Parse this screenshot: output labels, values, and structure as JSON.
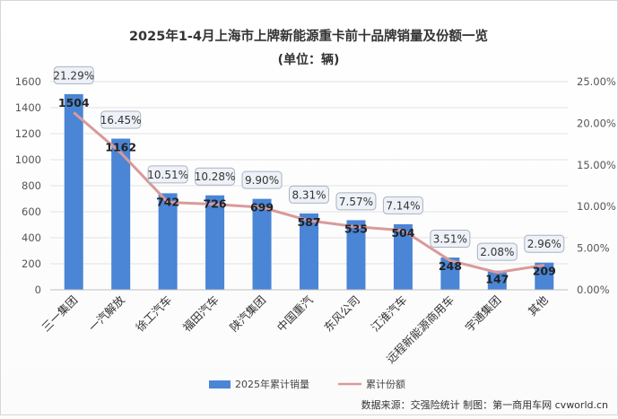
{
  "chart_data": {
    "type": "bar+line",
    "title": "2025年1-4月上海市上牌新能源重卡前十品牌销量及份额一览",
    "subtitle": "(单位：辆)",
    "categories": [
      "三一集团",
      "一汽解放",
      "徐工汽车",
      "福田汽车",
      "陕汽集团",
      "中国重汽",
      "东风公司",
      "江淮汽车",
      "远程新能源商用车",
      "宇通集团",
      "其他"
    ],
    "series": [
      {
        "name": "2025年累计销量",
        "type": "bar",
        "axis": "left",
        "color": "#4a85d6",
        "values": [
          1504,
          1162,
          742,
          726,
          699,
          587,
          535,
          504,
          248,
          147,
          209
        ]
      },
      {
        "name": "累计份额",
        "type": "line",
        "axis": "right",
        "color": "#d99a9a",
        "values": [
          21.29,
          16.45,
          10.51,
          10.28,
          9.9,
          8.31,
          7.57,
          7.14,
          3.51,
          2.08,
          2.96
        ],
        "labels": [
          "21.29%",
          "16.45%",
          "10.51%",
          "10.28%",
          "9.90%",
          "8.31%",
          "7.57%",
          "7.14%",
          "3.51%",
          "2.08%",
          "2.96%"
        ]
      }
    ],
    "ylim_left": [
      0,
      1600
    ],
    "yticks_left": [
      "0",
      "200",
      "400",
      "600",
      "800",
      "1000",
      "1200",
      "1400",
      "1600"
    ],
    "ylim_right": [
      0,
      25
    ],
    "yticks_right": [
      "0.00%",
      "5.00%",
      "10.00%",
      "15.00%",
      "20.00%",
      "25.00%"
    ],
    "legend_position": "bottom",
    "source_note": "数据来源：交强险统计  制图：第一商用车网 cvworld.cn"
  }
}
